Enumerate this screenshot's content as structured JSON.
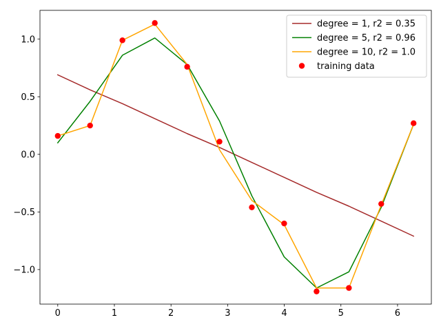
{
  "chart_data": {
    "type": "line",
    "title": "",
    "xlabel": "",
    "ylabel": "",
    "xlim": [
      -0.314,
      6.597
    ],
    "ylim": [
      -1.3,
      1.25
    ],
    "x_ticks": [
      0,
      1,
      2,
      3,
      4,
      5,
      6
    ],
    "x_tick_labels": [
      "0",
      "1",
      "2",
      "3",
      "4",
      "5",
      "6"
    ],
    "y_ticks": [
      -1.0,
      -0.5,
      0.0,
      0.5,
      1.0
    ],
    "y_tick_labels": [
      "−1.0",
      "−0.5",
      "0.0",
      "0.5",
      "1.0"
    ],
    "grid": false,
    "legend_position": "top-right",
    "x": [
      0,
      0.571,
      1.142,
      1.714,
      2.285,
      2.856,
      3.427,
      3.998,
      4.57,
      5.141,
      5.712,
      6.283
    ],
    "series": [
      {
        "name": "degree = 1, r2 = 0.35",
        "color": "#a52a2a",
        "style": "line",
        "values": [
          0.69,
          0.56,
          0.44,
          0.31,
          0.18,
          0.06,
          -0.07,
          -0.2,
          -0.33,
          -0.45,
          -0.58,
          -0.71
        ]
      },
      {
        "name": "degree = 5, r2 = 0.96",
        "color": "#008000",
        "style": "line",
        "values": [
          0.1,
          0.46,
          0.86,
          1.01,
          0.78,
          0.29,
          -0.36,
          -0.89,
          -1.16,
          -1.02,
          -0.46,
          0.26
        ]
      },
      {
        "name": "degree = 10, r2 = 1.0",
        "color": "#ffa500",
        "style": "line",
        "values": [
          0.16,
          0.25,
          0.99,
          1.13,
          0.78,
          0.04,
          -0.4,
          -0.61,
          -1.16,
          -1.16,
          -0.44,
          0.26
        ]
      },
      {
        "name": "training data",
        "color": "#ff0000",
        "style": "scatter",
        "values": [
          0.16,
          0.25,
          0.99,
          1.14,
          0.76,
          0.11,
          -0.46,
          -0.6,
          -1.19,
          -1.16,
          -0.43,
          0.27
        ]
      }
    ]
  }
}
